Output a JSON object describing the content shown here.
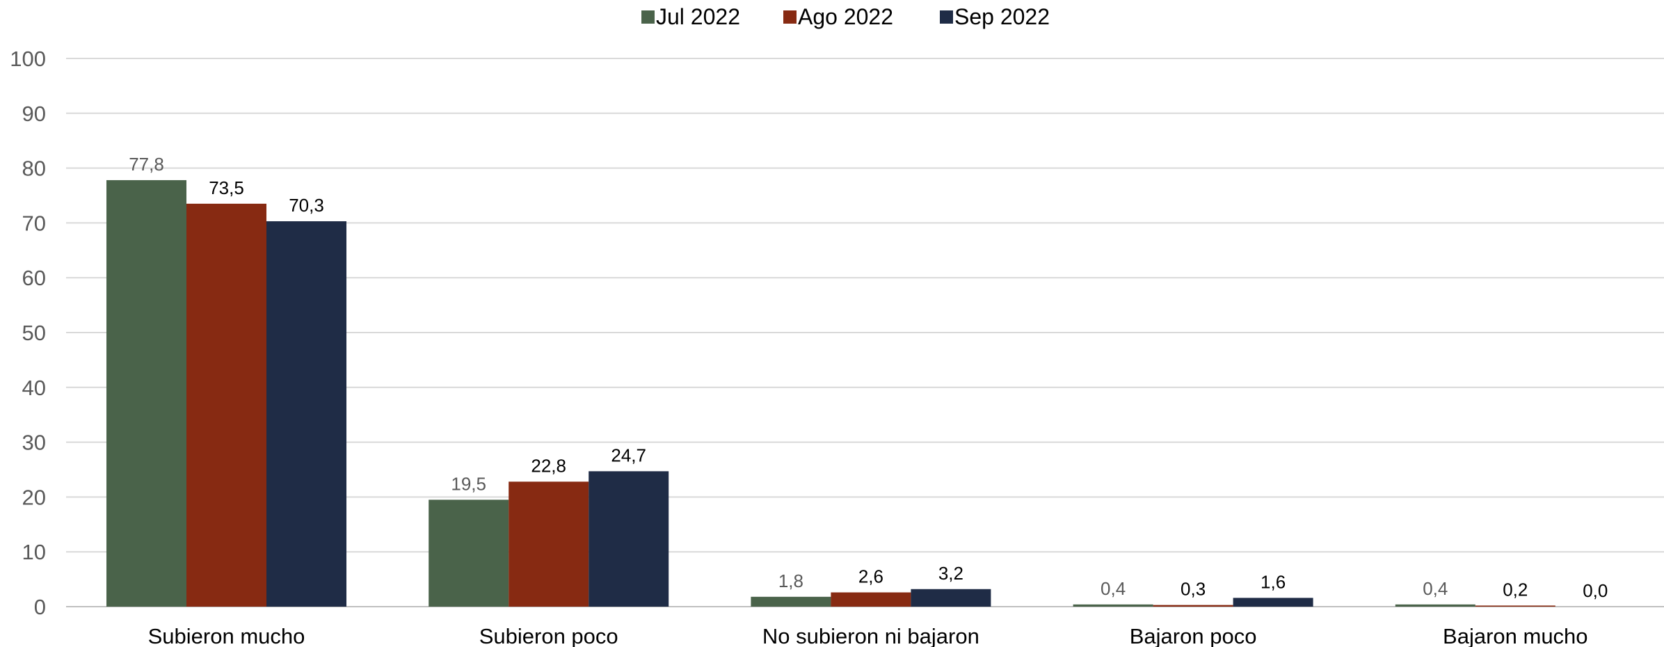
{
  "chart_data": {
    "type": "bar",
    "title": "",
    "xlabel": "",
    "ylabel": "",
    "ylim": [
      0,
      100
    ],
    "yticks": [
      0,
      10,
      20,
      30,
      40,
      50,
      60,
      70,
      80,
      90,
      100
    ],
    "grid": true,
    "legend_position": "top-center",
    "categories": [
      "Subieron mucho",
      "Subieron poco",
      "No subieron ni bajaron",
      "Bajaron poco",
      "Bajaron mucho"
    ],
    "series": [
      {
        "name": "Jul 2022",
        "color": "#4A634A",
        "label_color": "#595959",
        "values": [
          77.8,
          19.5,
          1.8,
          0.4,
          0.4
        ],
        "labels": [
          "77,8",
          "19,5",
          "1,8",
          "0,4",
          "0,4"
        ]
      },
      {
        "name": "Ago 2022",
        "color": "#872A12",
        "label_color": "#000000",
        "values": [
          73.5,
          22.8,
          2.6,
          0.3,
          0.2
        ],
        "labels": [
          "73,5",
          "22,8",
          "2,6",
          "0,3",
          "0,2"
        ]
      },
      {
        "name": "Sep 2022",
        "color": "#1F2C46",
        "label_color": "#000000",
        "values": [
          70.3,
          24.7,
          3.2,
          1.6,
          0.0
        ],
        "labels": [
          "70,3",
          "24,7",
          "3,2",
          "1,6",
          "0,0"
        ]
      }
    ]
  }
}
